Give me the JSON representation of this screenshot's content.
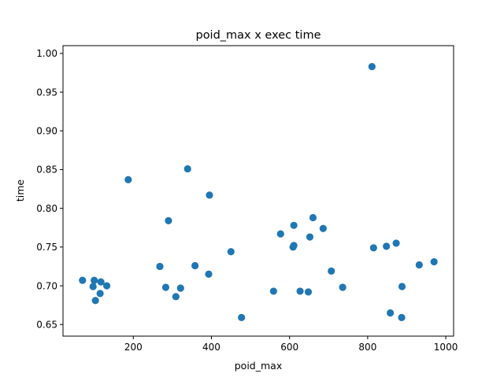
{
  "chart_data": {
    "type": "scatter",
    "title": "poid_max x exec time",
    "xlabel": "poid_max",
    "ylabel": "time",
    "xlim": [
      20,
      1020
    ],
    "ylim": [
      0.635,
      1.01
    ],
    "xticks": [
      200,
      400,
      600,
      800,
      1000
    ],
    "xtick_labels": [
      "200",
      "400",
      "600",
      "800",
      "1000"
    ],
    "yticks": [
      0.65,
      0.7,
      0.75,
      0.8,
      0.85,
      0.9,
      0.95,
      1.0
    ],
    "ytick_labels": [
      "0.65",
      "0.70",
      "0.75",
      "0.80",
      "0.85",
      "0.90",
      "0.95",
      "1.00"
    ],
    "grid": false,
    "marker_color": "#1f77b4",
    "series": [
      {
        "points": [
          [
            70,
            0.707
          ],
          [
            97,
            0.699
          ],
          [
            100,
            0.707
          ],
          [
            103,
            0.681
          ],
          [
            115,
            0.69
          ],
          [
            117,
            0.705
          ],
          [
            132,
            0.7
          ],
          [
            187,
            0.837
          ],
          [
            268,
            0.725
          ],
          [
            283,
            0.698
          ],
          [
            290,
            0.784
          ],
          [
            309,
            0.686
          ],
          [
            321,
            0.697
          ],
          [
            339,
            0.851
          ],
          [
            358,
            0.726
          ],
          [
            393,
            0.715
          ],
          [
            395,
            0.817
          ],
          [
            450,
            0.744
          ],
          [
            477,
            0.659
          ],
          [
            559,
            0.693
          ],
          [
            577,
            0.767
          ],
          [
            609,
            0.75
          ],
          [
            611,
            0.752
          ],
          [
            611,
            0.778
          ],
          [
            627,
            0.693
          ],
          [
            648,
            0.692
          ],
          [
            652,
            0.763
          ],
          [
            660,
            0.788
          ],
          [
            686,
            0.774
          ],
          [
            707,
            0.719
          ],
          [
            736,
            0.698
          ],
          [
            811,
            0.983
          ],
          [
            815,
            0.749
          ],
          [
            848,
            0.751
          ],
          [
            858,
            0.665
          ],
          [
            873,
            0.755
          ],
          [
            887,
            0.659
          ],
          [
            888,
            0.699
          ],
          [
            932,
            0.727
          ],
          [
            970,
            0.731
          ]
        ]
      }
    ]
  }
}
